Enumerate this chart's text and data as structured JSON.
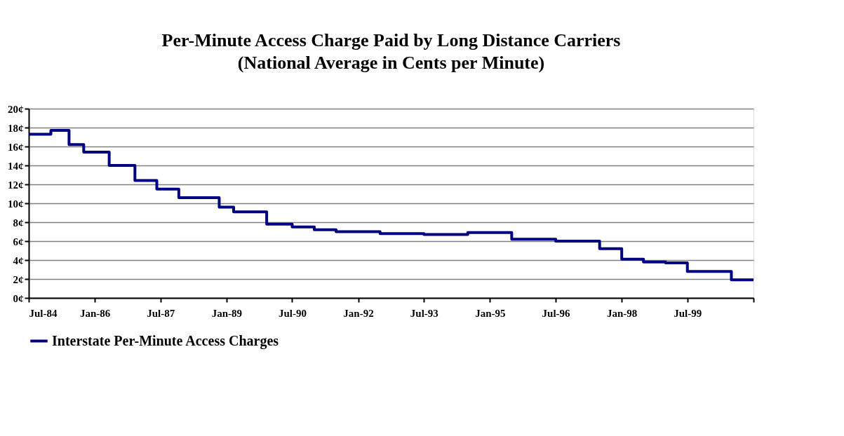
{
  "chart_data": {
    "type": "step",
    "title": "Per-Minute Access Charge Paid by Long Distance Carriers",
    "subtitle": "(National Average in Cents per Minute)",
    "x": [
      "1984-07",
      "1985-01",
      "1985-06",
      "1985-10",
      "1986-05",
      "1986-12",
      "1987-06",
      "1987-12",
      "1988-11",
      "1989-03",
      "1989-12",
      "1990-07",
      "1991-01",
      "1991-07",
      "1992-07",
      "1993-07",
      "1994-07",
      "1995-07",
      "1996-07",
      "1997-07",
      "1998-01",
      "1998-07",
      "1999-01",
      "1999-07",
      "2000-07",
      "2001-01"
    ],
    "series": [
      {
        "name": "Interstate Per-Minute Access Charges",
        "color": "#000080",
        "values": [
          17.3,
          17.7,
          16.2,
          15.4,
          14.0,
          12.4,
          11.5,
          10.6,
          9.6,
          9.1,
          7.8,
          7.5,
          7.2,
          7.0,
          6.8,
          6.7,
          6.9,
          6.2,
          6.0,
          5.2,
          4.1,
          3.8,
          3.7,
          2.8,
          1.9,
          1.9
        ]
      }
    ],
    "xlim": [
      "1984-07",
      "2001-01"
    ],
    "xticks": [
      {
        "value": "1984-07",
        "label": "Jul-84"
      },
      {
        "value": "1986-01",
        "label": "Jan-86"
      },
      {
        "value": "1987-07",
        "label": "Jul-87"
      },
      {
        "value": "1989-01",
        "label": "Jan-89"
      },
      {
        "value": "1990-07",
        "label": "Jul-90"
      },
      {
        "value": "1992-01",
        "label": "Jan-92"
      },
      {
        "value": "1993-07",
        "label": "Jul-93"
      },
      {
        "value": "1995-01",
        "label": "Jan-95"
      },
      {
        "value": "1996-07",
        "label": "Jul-96"
      },
      {
        "value": "1998-01",
        "label": "Jan-98"
      },
      {
        "value": "1999-07",
        "label": "Jul-99"
      },
      {
        "value": "2001-01",
        "label": null
      }
    ],
    "ylim": [
      0,
      20
    ],
    "yticks": [
      {
        "value": 0,
        "label": "0¢"
      },
      {
        "value": 2,
        "label": "2¢"
      },
      {
        "value": 4,
        "label": "4¢"
      },
      {
        "value": 6,
        "label": "6¢"
      },
      {
        "value": 8,
        "label": "8¢"
      },
      {
        "value": 10,
        "label": "10¢"
      },
      {
        "value": 12,
        "label": "12¢"
      },
      {
        "value": 14,
        "label": "14¢"
      },
      {
        "value": 16,
        "label": "16¢"
      },
      {
        "value": 18,
        "label": "18¢"
      },
      {
        "value": 20,
        "label": "20¢"
      }
    ],
    "grid": "y",
    "legend": "bottom",
    "marker": "none",
    "line_style": "solid"
  }
}
